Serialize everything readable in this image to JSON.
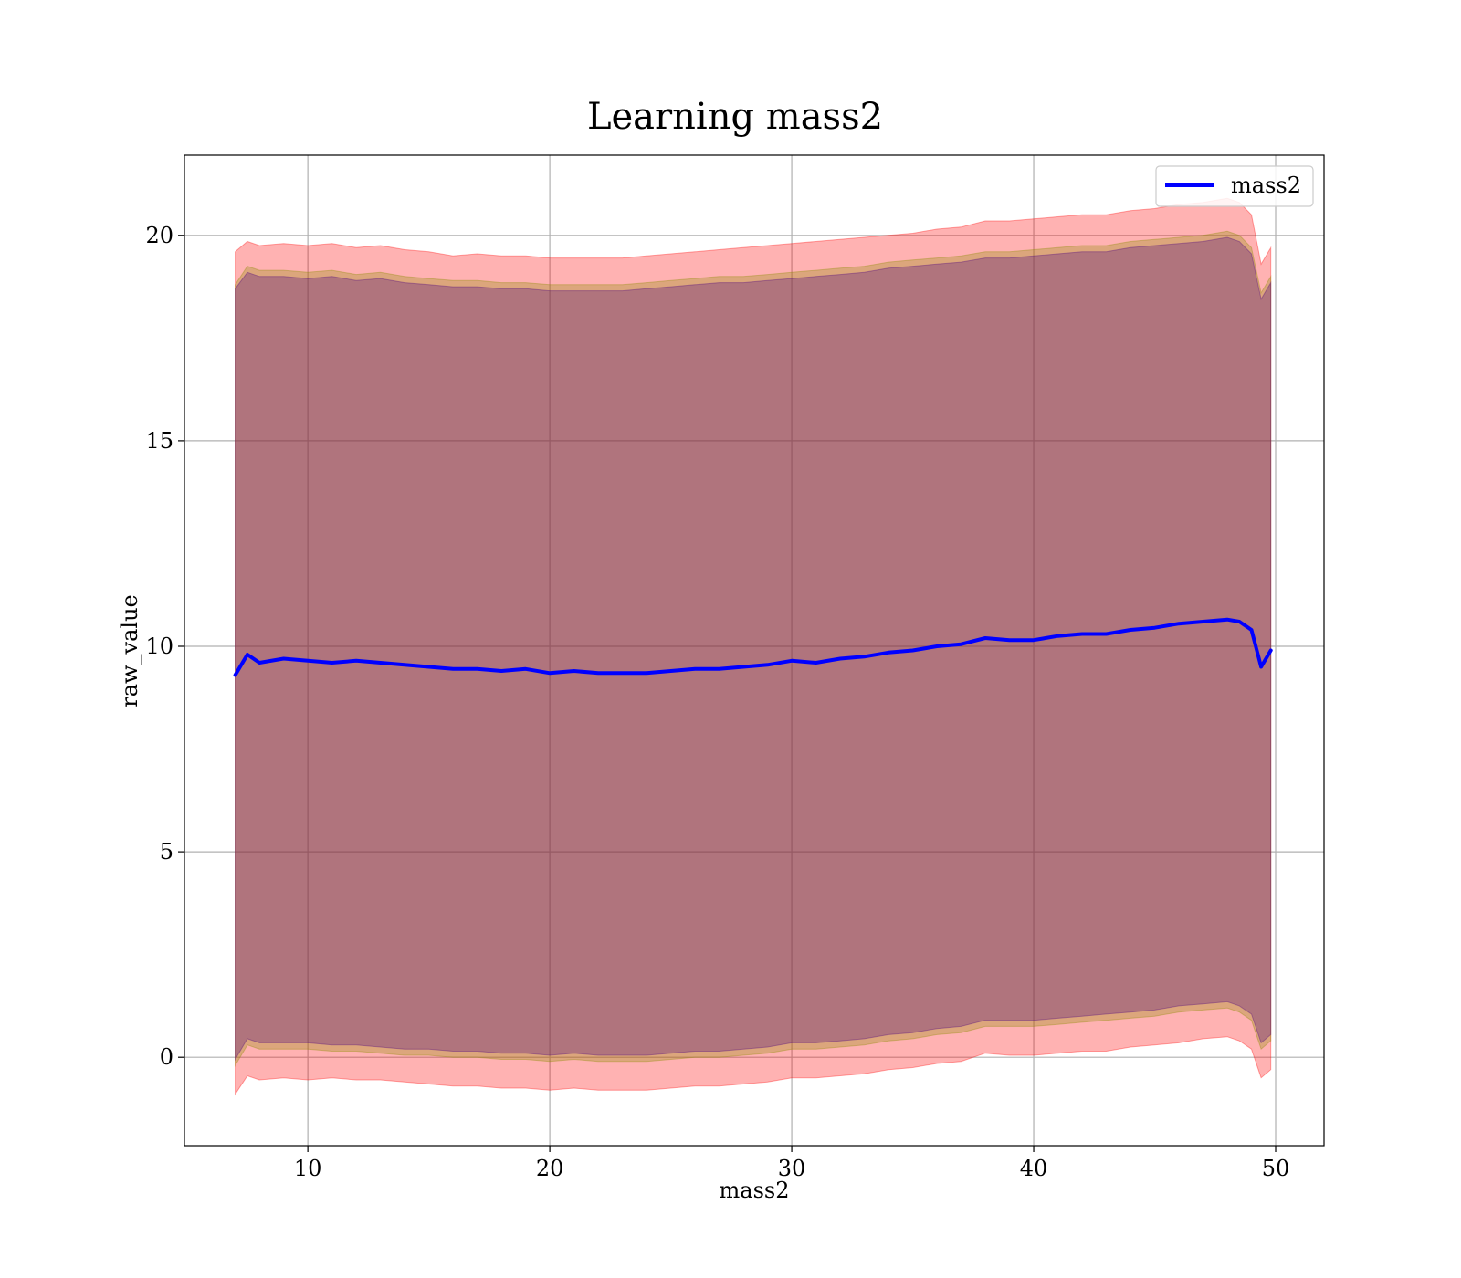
{
  "chart_data": {
    "type": "line",
    "title": "Learning mass2",
    "xlabel": "mass2",
    "ylabel": "raw_value",
    "xlim": [
      4.9,
      52.0
    ],
    "ylim": [
      -2.15,
      21.95
    ],
    "xticks": [
      10,
      20,
      30,
      40,
      50
    ],
    "yticks": [
      0,
      5,
      10,
      15,
      20
    ],
    "grid": true,
    "legend": {
      "position": "top-right",
      "entries": [
        "mass2"
      ]
    },
    "colors": {
      "line": "#0000ff",
      "outer_band": "#ff0000",
      "middle_band": "#8b8b00",
      "inner_band": "#4b0082"
    },
    "series": [
      {
        "name": "mass2",
        "x": [
          7,
          7.5,
          8,
          9,
          10,
          11,
          12,
          13,
          14,
          15,
          16,
          17,
          18,
          19,
          20,
          21,
          22,
          23,
          24,
          25,
          26,
          27,
          28,
          29,
          30,
          31,
          32,
          33,
          34,
          35,
          36,
          37,
          38,
          39,
          40,
          41,
          42,
          43,
          44,
          45,
          46,
          47,
          48,
          48.5,
          49,
          49.4,
          49.8
        ],
        "y": [
          9.3,
          9.8,
          9.6,
          9.7,
          9.65,
          9.6,
          9.65,
          9.6,
          9.55,
          9.5,
          9.45,
          9.45,
          9.4,
          9.45,
          9.35,
          9.4,
          9.35,
          9.35,
          9.35,
          9.4,
          9.45,
          9.45,
          9.5,
          9.55,
          9.65,
          9.6,
          9.7,
          9.75,
          9.85,
          9.9,
          10.0,
          10.05,
          10.2,
          10.15,
          10.15,
          10.25,
          10.3,
          10.3,
          10.4,
          10.45,
          10.55,
          10.6,
          10.65,
          10.6,
          10.4,
          9.5,
          9.9
        ]
      }
    ],
    "bands": [
      {
        "role": "outer",
        "upper": [
          19.6,
          19.85,
          19.75,
          19.8,
          19.75,
          19.8,
          19.7,
          19.75,
          19.65,
          19.6,
          19.5,
          19.55,
          19.5,
          19.5,
          19.45,
          19.45,
          19.45,
          19.45,
          19.5,
          19.55,
          19.6,
          19.65,
          19.7,
          19.75,
          19.8,
          19.85,
          19.9,
          19.95,
          20.0,
          20.05,
          20.15,
          20.2,
          20.35,
          20.35,
          20.4,
          20.45,
          20.5,
          20.5,
          20.6,
          20.65,
          20.75,
          20.8,
          20.9,
          20.8,
          20.5,
          19.3,
          19.7
        ],
        "lower": [
          -0.9,
          -0.45,
          -0.55,
          -0.5,
          -0.55,
          -0.5,
          -0.55,
          -0.55,
          -0.6,
          -0.65,
          -0.7,
          -0.7,
          -0.75,
          -0.75,
          -0.8,
          -0.75,
          -0.8,
          -0.8,
          -0.8,
          -0.75,
          -0.7,
          -0.7,
          -0.65,
          -0.6,
          -0.5,
          -0.5,
          -0.45,
          -0.4,
          -0.3,
          -0.25,
          -0.15,
          -0.1,
          0.1,
          0.05,
          0.05,
          0.1,
          0.15,
          0.15,
          0.25,
          0.3,
          0.35,
          0.45,
          0.5,
          0.4,
          0.2,
          -0.5,
          -0.3
        ]
      },
      {
        "role": "middle",
        "upper": [
          18.8,
          19.25,
          19.15,
          19.15,
          19.1,
          19.15,
          19.05,
          19.1,
          19.0,
          18.95,
          18.9,
          18.9,
          18.85,
          18.85,
          18.8,
          18.8,
          18.8,
          18.8,
          18.85,
          18.9,
          18.95,
          19.0,
          19.0,
          19.05,
          19.1,
          19.15,
          19.2,
          19.25,
          19.35,
          19.4,
          19.45,
          19.5,
          19.6,
          19.6,
          19.65,
          19.7,
          19.75,
          19.75,
          19.85,
          19.9,
          19.95,
          20.0,
          20.1,
          20.0,
          19.7,
          18.6,
          19.0
        ],
        "lower": [
          -0.2,
          0.3,
          0.2,
          0.2,
          0.2,
          0.15,
          0.15,
          0.1,
          0.05,
          0.05,
          0.0,
          0.0,
          -0.05,
          -0.05,
          -0.1,
          -0.05,
          -0.1,
          -0.1,
          -0.1,
          -0.05,
          0.0,
          0.0,
          0.05,
          0.1,
          0.2,
          0.2,
          0.25,
          0.3,
          0.4,
          0.45,
          0.55,
          0.6,
          0.75,
          0.75,
          0.75,
          0.8,
          0.85,
          0.9,
          0.95,
          1.0,
          1.1,
          1.15,
          1.2,
          1.1,
          0.9,
          0.2,
          0.4
        ]
      },
      {
        "role": "inner",
        "upper": [
          18.7,
          19.1,
          19.0,
          19.0,
          18.95,
          19.0,
          18.9,
          18.95,
          18.85,
          18.8,
          18.75,
          18.75,
          18.7,
          18.7,
          18.65,
          18.65,
          18.65,
          18.65,
          18.7,
          18.75,
          18.8,
          18.85,
          18.85,
          18.9,
          18.95,
          19.0,
          19.05,
          19.1,
          19.2,
          19.25,
          19.3,
          19.35,
          19.45,
          19.45,
          19.5,
          19.55,
          19.6,
          19.6,
          19.7,
          19.75,
          19.8,
          19.85,
          19.95,
          19.85,
          19.55,
          18.45,
          18.85
        ],
        "lower": [
          -0.05,
          0.45,
          0.35,
          0.35,
          0.35,
          0.3,
          0.3,
          0.25,
          0.2,
          0.2,
          0.15,
          0.15,
          0.1,
          0.1,
          0.05,
          0.1,
          0.05,
          0.05,
          0.05,
          0.1,
          0.15,
          0.15,
          0.2,
          0.25,
          0.35,
          0.35,
          0.4,
          0.45,
          0.55,
          0.6,
          0.7,
          0.75,
          0.9,
          0.9,
          0.9,
          0.95,
          1.0,
          1.05,
          1.1,
          1.15,
          1.25,
          1.3,
          1.35,
          1.25,
          1.05,
          0.35,
          0.55
        ]
      }
    ]
  }
}
